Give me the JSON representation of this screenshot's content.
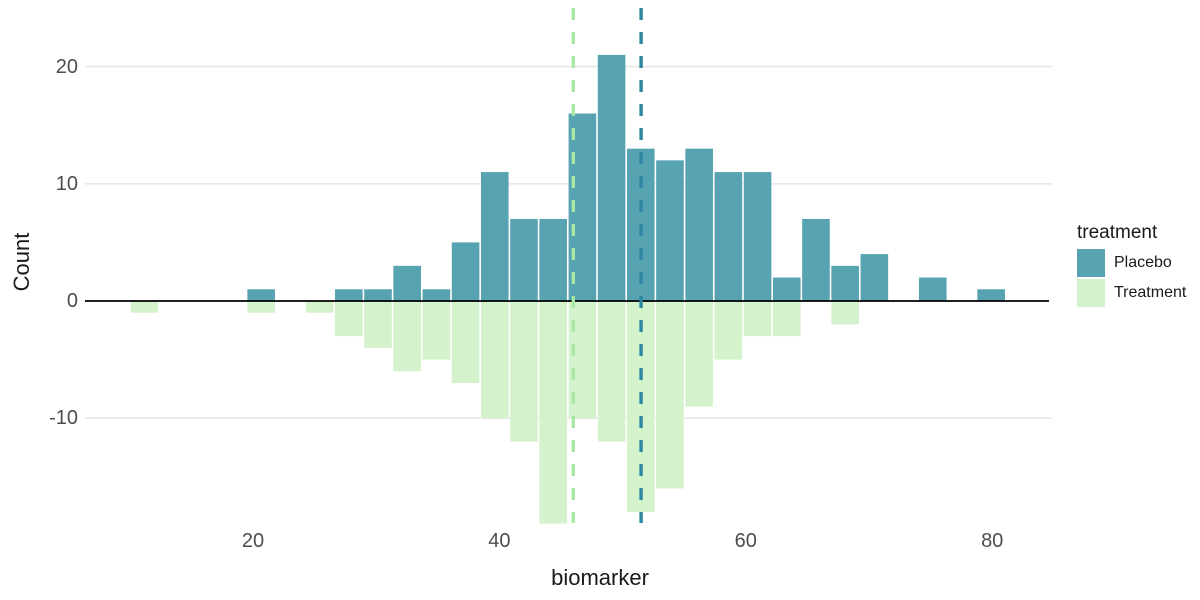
{
  "figure": {
    "background": "#ffffff"
  },
  "y_axis": {
    "title": "Count",
    "tick_labels": [
      "20",
      "10",
      "0",
      "-10"
    ],
    "tick_values": [
      20,
      10,
      0,
      -10
    ]
  },
  "x_axis": {
    "title": "biomarker",
    "tick_labels": [
      "20",
      "40",
      "60",
      "80"
    ],
    "tick_values": [
      20,
      40,
      60,
      80
    ]
  },
  "legend": {
    "title": "treatment",
    "items": [
      {
        "label": "Placebo",
        "color": "#58a3b1"
      },
      {
        "label": "Treatment",
        "color": "#d4f3cc"
      }
    ]
  },
  "colors": {
    "placebo_fill": "#58a3b1",
    "treatment_fill": "#d4f3cc",
    "placebo_mean_line": "#2e86a0",
    "treatment_mean_line": "#a9e8a2",
    "gridline": "#e8e8e8",
    "zero_line": "#000000",
    "tick_text": "#4d4d4d",
    "title_text": "#1a1a1a"
  },
  "chart_data": {
    "type": "bar",
    "subtype": "mirrored back-to-back histogram",
    "title": "",
    "xlabel": "biomarker",
    "ylabel": "Count",
    "x_ticks": [
      20,
      40,
      60,
      80
    ],
    "y_ticks": [
      20,
      10,
      0,
      -10
    ],
    "xlim": [
      6.4,
      84.7
    ],
    "ylim": [
      -25,
      25
    ],
    "bin_width": 2.37,
    "bin_edges": [
      10,
      12.37,
      14.74,
      17.11,
      19.48,
      21.85,
      24.22,
      26.59,
      28.96,
      31.33,
      33.7,
      36.07,
      38.44,
      40.81,
      43.18,
      45.55,
      47.92,
      50.29,
      52.66,
      55.03,
      57.4,
      59.77,
      62.14,
      64.51,
      66.88,
      69.25,
      71.62,
      73.99,
      76.36,
      78.73,
      81.1
    ],
    "series": [
      {
        "name": "Placebo",
        "orientation": "up",
        "color": "#58a3b1",
        "counts": [
          0,
          0,
          0,
          0,
          1,
          0,
          0,
          1,
          1,
          3,
          1,
          5,
          11,
          7,
          7,
          16,
          21,
          13,
          12,
          13,
          11,
          11,
          2,
          7,
          3,
          4,
          0,
          2,
          0,
          1
        ]
      },
      {
        "name": "Treatment",
        "orientation": "down",
        "color": "#d4f3cc",
        "counts": [
          1,
          0,
          0,
          0,
          1,
          0,
          1,
          3,
          4,
          6,
          5,
          7,
          10,
          12,
          19,
          10,
          12,
          18,
          16,
          9,
          5,
          3,
          3,
          0,
          2,
          0,
          0,
          0,
          0,
          0
        ]
      }
    ],
    "mean_lines": [
      {
        "series": "Treatment",
        "x": 46.0,
        "color": "#a9e8a2",
        "style": "dashed"
      },
      {
        "series": "Placebo",
        "x": 51.5,
        "color": "#2e86a0",
        "style": "dashed"
      }
    ],
    "grid": "horizontal major gridlines only",
    "legend_position": "right",
    "legend_title": "treatment"
  }
}
